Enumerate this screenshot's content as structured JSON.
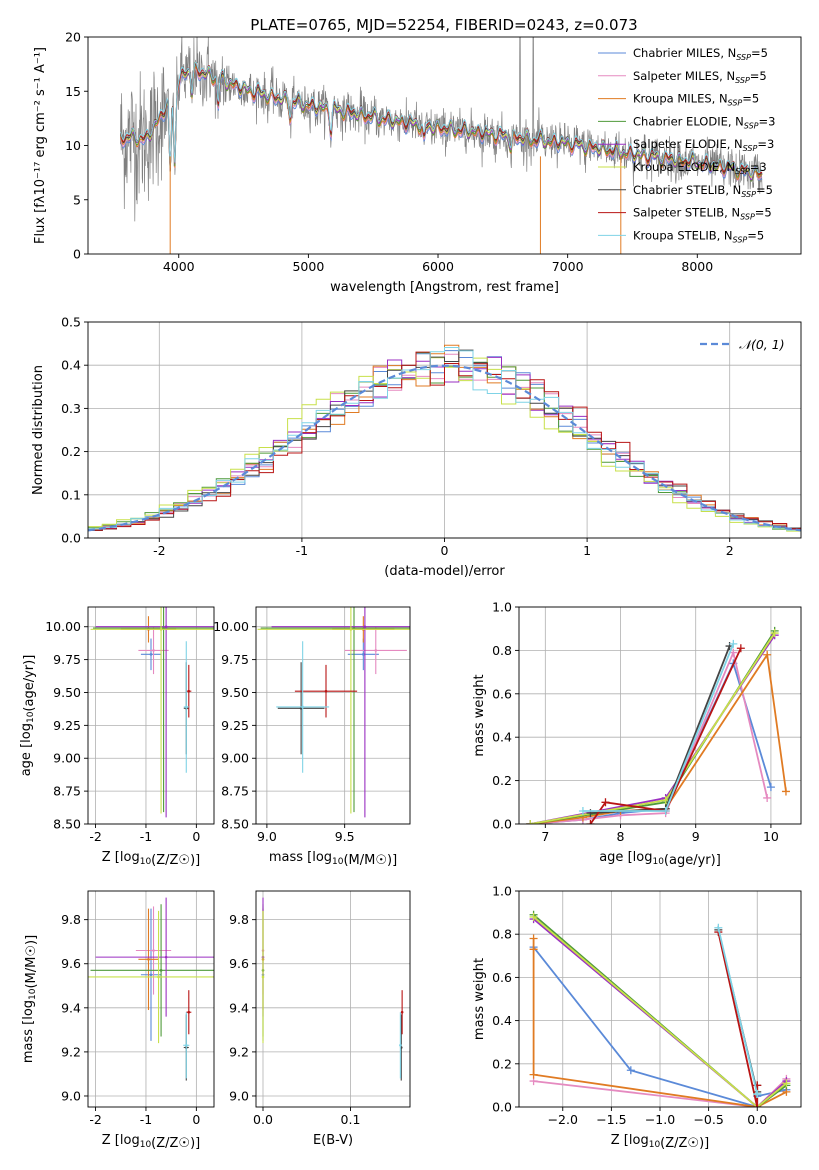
{
  "figure_title": "PLATE=0765, MJD=52254, FIBERID=0243, z=0.073",
  "colors": {
    "chabrier_miles": "#5b8ad8",
    "salpeter_miles": "#e58ac0",
    "kroupa_miles": "#e07b23",
    "chabrier_elodie": "#4f9a3a",
    "salpeter_elodie": "#9a2fc2",
    "kroupa_elodie": "#c8e04a",
    "chabrier_stelib": "#444444",
    "salpeter_stelib": "#b81414",
    "kroupa_stelib": "#7fd3e6",
    "data": "#808080",
    "normal": "#5b8ad8"
  },
  "chart_data": [
    {
      "id": "spectrum",
      "type": "line",
      "title": "PLATE=0765, MJD=52254, FIBERID=0243, z=0.073",
      "xlabel": "wavelength [Angstrom, rest frame]",
      "ylabel": "Flux [fλ10⁻¹⁷ erg cm⁻² s⁻¹ A⁻¹]",
      "xlim": [
        3300,
        8800
      ],
      "ylim": [
        0,
        20
      ],
      "xticks": [
        4000,
        5000,
        6000,
        7000,
        8000
      ],
      "yticks": [
        0,
        5,
        10,
        15,
        20
      ],
      "grid": false,
      "legend_position": "top-right",
      "series": [
        {
          "name": "Chabrier MILES, NSSP=5",
          "legend_text": "Chabrier MILES, N",
          "legend_sub": "SSP",
          "legend_tail": "=5",
          "color_key": "chabrier_miles"
        },
        {
          "name": "Salpeter MILES, NSSP=5",
          "legend_text": "Salpeter MILES, N",
          "legend_sub": "SSP",
          "legend_tail": "=5",
          "color_key": "salpeter_miles"
        },
        {
          "name": "Kroupa MILES, NSSP=5",
          "legend_text": "Kroupa MILES, N",
          "legend_sub": "SSP",
          "legend_tail": "=5",
          "color_key": "kroupa_miles"
        },
        {
          "name": "Chabrier ELODIE, NSSP=3",
          "legend_text": "Chabrier ELODIE, N",
          "legend_sub": "SSP",
          "legend_tail": "=3",
          "color_key": "chabrier_elodie"
        },
        {
          "name": "Salpeter ELODIE, NSSP=3",
          "legend_text": "Salpeter ELODIE, N",
          "legend_sub": "SSP",
          "legend_tail": "=3",
          "color_key": "salpeter_elodie"
        },
        {
          "name": "Kroupa ELODIE, NSSP=3",
          "legend_text": "Kroupa ELODIE, N",
          "legend_sub": "SSP",
          "legend_tail": "=3",
          "color_key": "kroupa_elodie"
        },
        {
          "name": "Chabrier STELIB, NSSP=5",
          "legend_text": "Chabrier STELIB, N",
          "legend_sub": "SSP",
          "legend_tail": "=5",
          "color_key": "chabrier_stelib"
        },
        {
          "name": "Salpeter STELIB, NSSP=5",
          "legend_text": "Salpeter STELIB, N",
          "legend_sub": "SSP",
          "legend_tail": "=5",
          "color_key": "salpeter_stelib"
        },
        {
          "name": "Kroupa STELIB, NSSP=5",
          "legend_text": "Kroupa STELIB, N",
          "legend_sub": "SSP",
          "legend_tail": "=5",
          "color_key": "kroupa_stelib"
        }
      ],
      "continuum": {
        "x": [
          3550,
          3650,
          3750,
          3850,
          3950,
          4000,
          4100,
          4200,
          4300,
          4500,
          4750,
          5000,
          5250,
          5500,
          5750,
          6000,
          6250,
          6500,
          6750,
          7000,
          7250,
          7500,
          7750,
          8000,
          8250,
          8500
        ],
        "y": [
          10.6,
          10.8,
          10.5,
          12.5,
          14.5,
          16.0,
          17.0,
          16.6,
          16.2,
          15.2,
          14.4,
          13.7,
          13.2,
          12.6,
          12.1,
          11.6,
          11.3,
          10.9,
          10.5,
          10.2,
          9.7,
          9.2,
          8.8,
          8.4,
          7.9,
          7.3
        ]
      },
      "absorption_features": [
        [
          3934,
          6.5
        ],
        [
          3969,
          7.0
        ],
        [
          4102,
          2.0
        ],
        [
          4304,
          2.5
        ],
        [
          4861,
          1.5
        ],
        [
          5175,
          2.0
        ],
        [
          5892,
          1.5
        ],
        [
          6563,
          1.0
        ]
      ]
    },
    {
      "id": "residuals",
      "type": "line",
      "xlabel": "(data-model)/error",
      "ylabel": "Normed distribution",
      "xlim": [
        -2.5,
        2.5
      ],
      "ylim": [
        0,
        0.5
      ],
      "xticks": [
        -2,
        -1,
        0,
        1,
        2
      ],
      "yticks": [
        0.0,
        0.1,
        0.2,
        0.3,
        0.4,
        0.5
      ],
      "grid": true,
      "legend_position": "top-right",
      "normal_label": "𝒩(0, 1)",
      "histogram_bin_width": 0.1,
      "shift_per_model": [
        0.02,
        0.0,
        0.03,
        -0.04,
        0.01,
        -0.09,
        0.05,
        0.08,
        -0.02
      ]
    },
    {
      "id": "age_vs_Z",
      "type": "scatter",
      "xlabel": "Z [log10(Z/Z☉)]",
      "ylabel": "age [log10(age/yr)]",
      "xlim": [
        -2.15,
        0.35
      ],
      "ylim": [
        8.5,
        10.15
      ],
      "xticks": [
        -2,
        -1,
        0
      ],
      "yticks": [
        8.5,
        8.75,
        9.0,
        9.25,
        9.5,
        9.75,
        10.0
      ],
      "grid": true,
      "points": [
        {
          "x": -0.9,
          "y": 9.79,
          "xerr": 0.2,
          "yerr": 0.12,
          "color_key": "chabrier_miles"
        },
        {
          "x": -0.85,
          "y": 9.82,
          "xerr": 0.3,
          "yerr": 0.18,
          "color_key": "salpeter_miles"
        },
        {
          "x": -0.95,
          "y": 9.98,
          "xerr": 0.55,
          "yerr": 0.1,
          "color_key": "kroupa_miles"
        },
        {
          "x": -0.65,
          "y": 9.99,
          "xerr": 1.4,
          "yerr": 1.4,
          "color_key": "chabrier_elodie"
        },
        {
          "x": -0.6,
          "y": 10.0,
          "xerr": 1.4,
          "yerr": 1.45,
          "color_key": "salpeter_elodie"
        },
        {
          "x": -0.7,
          "y": 9.98,
          "xerr": 1.4,
          "yerr": 1.4,
          "color_key": "kroupa_elodie"
        },
        {
          "x": -0.2,
          "y": 9.38,
          "xerr": 0.05,
          "yerr": 0.35,
          "color_key": "chabrier_stelib"
        },
        {
          "x": -0.15,
          "y": 9.51,
          "xerr": 0.05,
          "yerr": 0.2,
          "color_key": "salpeter_stelib"
        },
        {
          "x": -0.2,
          "y": 9.39,
          "xerr": 0.05,
          "yerr": 0.5,
          "color_key": "kroupa_stelib"
        }
      ]
    },
    {
      "id": "age_vs_mass",
      "type": "scatter",
      "xlabel": "mass [log10(M/M☉)]",
      "ylabel": "",
      "xlim": [
        8.93,
        9.92
      ],
      "ylim": [
        8.5,
        10.15
      ],
      "xticks": [
        9.0,
        9.5
      ],
      "yticks": [
        8.5,
        8.75,
        9.0,
        9.25,
        9.5,
        9.75,
        10.0
      ],
      "grid": true,
      "points": [
        {
          "x": 9.62,
          "y": 9.79,
          "xerr": 0.1,
          "yerr": 0.12,
          "color_key": "chabrier_miles"
        },
        {
          "x": 9.7,
          "y": 9.82,
          "xerr": 0.2,
          "yerr": 0.18,
          "color_key": "salpeter_miles"
        },
        {
          "x": 9.62,
          "y": 9.98,
          "xerr": 0.2,
          "yerr": 0.1,
          "color_key": "kroupa_miles"
        },
        {
          "x": 9.56,
          "y": 9.99,
          "xerr": 0.6,
          "yerr": 1.4,
          "color_key": "chabrier_elodie"
        },
        {
          "x": 9.63,
          "y": 10.0,
          "xerr": 0.6,
          "yerr": 1.45,
          "color_key": "salpeter_elodie"
        },
        {
          "x": 9.54,
          "y": 9.98,
          "xerr": 0.6,
          "yerr": 1.4,
          "color_key": "kroupa_elodie"
        },
        {
          "x": 9.22,
          "y": 9.38,
          "xerr": 0.15,
          "yerr": 0.35,
          "color_key": "chabrier_stelib"
        },
        {
          "x": 9.38,
          "y": 9.51,
          "xerr": 0.2,
          "yerr": 0.2,
          "color_key": "salpeter_stelib"
        },
        {
          "x": 9.23,
          "y": 9.39,
          "xerr": 0.17,
          "yerr": 0.5,
          "color_key": "kroupa_stelib"
        }
      ]
    },
    {
      "id": "mass_weight_vs_age",
      "type": "line",
      "xlabel": "age [log10(age/yr)]",
      "ylabel": "mass weight",
      "xlim": [
        6.65,
        10.4
      ],
      "ylim": [
        0,
        1
      ],
      "xticks": [
        7,
        8,
        9,
        10
      ],
      "yticks": [
        0.0,
        0.2,
        0.4,
        0.6,
        0.8,
        1.0
      ],
      "grid": true,
      "series": [
        {
          "color_key": "chabrier_miles",
          "x": [
            6.8,
            7.5,
            8.0,
            8.6,
            9.5,
            10.0
          ],
          "y": [
            0.0,
            0.02,
            0.05,
            0.07,
            0.74,
            0.17
          ]
        },
        {
          "color_key": "salpeter_miles",
          "x": [
            6.8,
            7.5,
            8.0,
            8.6,
            9.5,
            9.95
          ],
          "y": [
            0.0,
            0.02,
            0.04,
            0.05,
            0.79,
            0.12
          ]
        },
        {
          "color_key": "kroupa_miles",
          "x": [
            6.8,
            7.5,
            8.0,
            8.6,
            9.95,
            10.2
          ],
          "y": [
            0.0,
            0.03,
            0.06,
            0.07,
            0.78,
            0.15
          ]
        },
        {
          "color_key": "chabrier_elodie",
          "x": [
            6.8,
            8.6,
            10.05
          ],
          "y": [
            0.0,
            0.1,
            0.89
          ]
        },
        {
          "color_key": "salpeter_elodie",
          "x": [
            6.8,
            8.6,
            10.05
          ],
          "y": [
            0.0,
            0.12,
            0.87
          ]
        },
        {
          "color_key": "kroupa_elodie",
          "x": [
            6.8,
            8.6,
            10.05
          ],
          "y": [
            0.0,
            0.11,
            0.88
          ]
        },
        {
          "color_key": "chabrier_stelib",
          "x": [
            7.6,
            8.6,
            9.45
          ],
          "y": [
            0.05,
            0.07,
            0.82
          ]
        },
        {
          "color_key": "salpeter_stelib",
          "x": [
            7.6,
            7.8,
            8.6,
            9.6
          ],
          "y": [
            0.0,
            0.1,
            0.06,
            0.81
          ]
        },
        {
          "color_key": "kroupa_stelib",
          "x": [
            7.5,
            8.6,
            9.5
          ],
          "y": [
            0.06,
            0.06,
            0.83
          ]
        }
      ]
    },
    {
      "id": "mass_vs_Z",
      "type": "scatter",
      "xlabel": "Z [log10(Z/Z☉)]",
      "ylabel": "mass [log10(M/M☉)]",
      "xlim": [
        -2.15,
        0.35
      ],
      "ylim": [
        8.95,
        9.93
      ],
      "xticks": [
        -2,
        -1,
        0
      ],
      "yticks": [
        9.0,
        9.2,
        9.4,
        9.6,
        9.8
      ],
      "grid": true,
      "points": [
        {
          "x": -0.9,
          "y": 9.55,
          "xerr": 0.2,
          "yerr": 0.3,
          "color_key": "chabrier_miles"
        },
        {
          "x": -0.85,
          "y": 9.66,
          "xerr": 0.35,
          "yerr": 0.2,
          "color_key": "salpeter_miles"
        },
        {
          "x": -0.95,
          "y": 9.62,
          "xerr": 0.2,
          "yerr": 0.23,
          "color_key": "kroupa_miles"
        },
        {
          "x": -0.7,
          "y": 9.57,
          "xerr": 1.4,
          "yerr": 0.3,
          "color_key": "chabrier_elodie"
        },
        {
          "x": -0.6,
          "y": 9.63,
          "xerr": 1.4,
          "yerr": 0.27,
          "color_key": "salpeter_elodie"
        },
        {
          "x": -0.75,
          "y": 9.54,
          "xerr": 1.4,
          "yerr": 0.3,
          "color_key": "kroupa_elodie"
        },
        {
          "x": -0.2,
          "y": 9.22,
          "xerr": 0.05,
          "yerr": 0.15,
          "color_key": "chabrier_stelib"
        },
        {
          "x": -0.15,
          "y": 9.38,
          "xerr": 0.05,
          "yerr": 0.1,
          "color_key": "salpeter_stelib"
        },
        {
          "x": -0.2,
          "y": 9.23,
          "xerr": 0.06,
          "yerr": 0.15,
          "color_key": "kroupa_stelib"
        }
      ]
    },
    {
      "id": "mass_vs_ebv",
      "type": "scatter",
      "xlabel": "E(B-V)",
      "ylabel": "",
      "xlim": [
        -0.008,
        0.168
      ],
      "ylim": [
        8.95,
        9.93
      ],
      "xticks": [
        0.0,
        0.1
      ],
      "yticks": [
        9.0,
        9.2,
        9.4,
        9.6,
        9.8
      ],
      "grid": true,
      "points": [
        {
          "x": 0.0,
          "y": 9.55,
          "yerr": 0.3,
          "color_key": "chabrier_miles"
        },
        {
          "x": 0.0,
          "y": 9.66,
          "yerr": 0.2,
          "color_key": "salpeter_miles"
        },
        {
          "x": 0.0,
          "y": 9.62,
          "yerr": 0.23,
          "color_key": "kroupa_miles"
        },
        {
          "x": 0.0,
          "y": 9.57,
          "yerr": 0.3,
          "color_key": "chabrier_elodie"
        },
        {
          "x": 0.0,
          "y": 9.63,
          "yerr": 0.27,
          "color_key": "salpeter_elodie"
        },
        {
          "x": 0.0,
          "y": 9.54,
          "yerr": 0.3,
          "color_key": "kroupa_elodie"
        },
        {
          "x": 0.158,
          "y": 9.22,
          "yerr": 0.15,
          "color_key": "chabrier_stelib"
        },
        {
          "x": 0.159,
          "y": 9.38,
          "yerr": 0.1,
          "color_key": "salpeter_stelib"
        },
        {
          "x": 0.157,
          "y": 9.23,
          "yerr": 0.15,
          "color_key": "kroupa_stelib"
        }
      ]
    },
    {
      "id": "mass_weight_vs_Z",
      "type": "line",
      "xlabel": "Z [log10(Z/Z☉)]",
      "ylabel": "mass weight",
      "xlim": [
        -2.45,
        0.45
      ],
      "ylim": [
        0,
        1
      ],
      "xticks": [
        -2.0,
        -1.5,
        -1.0,
        -0.5,
        0.0
      ],
      "yticks": [
        0.0,
        0.2,
        0.4,
        0.6,
        0.8,
        1.0
      ],
      "grid": true,
      "series": [
        {
          "color_key": "chabrier_miles",
          "x": [
            -2.3,
            -1.3,
            0.0,
            0.0,
            0.3
          ],
          "y": [
            0.74,
            0.17,
            0.0,
            0.05,
            0.08
          ]
        },
        {
          "color_key": "salpeter_miles",
          "x": [
            -2.3,
            0.0,
            0.3
          ],
          "y": [
            0.12,
            0.0,
            0.13
          ]
        },
        {
          "color_key": "kroupa_miles",
          "x": [
            -2.3,
            -2.3,
            -2.3,
            0.0,
            0.3
          ],
          "y": [
            0.78,
            0.73,
            0.15,
            0.0,
            0.07
          ]
        },
        {
          "color_key": "chabrier_elodie",
          "x": [
            -2.3,
            0.0,
            0.3
          ],
          "y": [
            0.89,
            0.0,
            0.1
          ]
        },
        {
          "color_key": "salpeter_elodie",
          "x": [
            -2.3,
            0.0,
            0.3
          ],
          "y": [
            0.87,
            0.0,
            0.12
          ]
        },
        {
          "color_key": "kroupa_elodie",
          "x": [
            -2.3,
            0.0,
            0.3
          ],
          "y": [
            0.88,
            0.0,
            0.11
          ]
        },
        {
          "color_key": "chabrier_stelib",
          "x": [
            -0.4,
            0.0,
            0.0
          ],
          "y": [
            0.82,
            0.07,
            0.1
          ]
        },
        {
          "color_key": "salpeter_stelib",
          "x": [
            -0.4,
            0.0,
            0.0
          ],
          "y": [
            0.81,
            0.0,
            0.1
          ]
        },
        {
          "color_key": "kroupa_stelib",
          "x": [
            -0.4,
            0.0,
            0.0
          ],
          "y": [
            0.83,
            0.06,
            0.06
          ]
        }
      ]
    }
  ]
}
